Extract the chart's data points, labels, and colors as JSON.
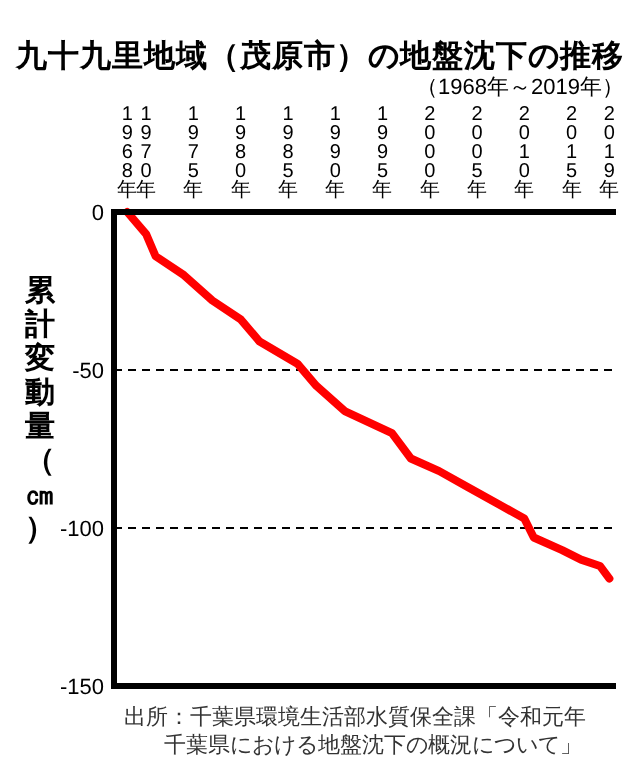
{
  "chart_data": {
    "type": "line",
    "title": "九十九里地域（茂原市）の地盤沈下の推移",
    "subtitle": "（1968年～2019年）",
    "ylabel": "累計変動量（㎝）",
    "x": [
      1968,
      1970,
      1971,
      1974,
      1977,
      1980,
      1982,
      1986,
      1988,
      1991,
      1996,
      1998,
      2001,
      2004,
      2007,
      2010,
      2011,
      2014,
      2016,
      2018,
      2019
    ],
    "series": [
      {
        "color": "#ff0000",
        "values": [
          0,
          -7,
          -14,
          -20,
          -28,
          -34,
          -41,
          -48,
          -55,
          -63,
          -70,
          -78,
          -82,
          -87,
          -92,
          -97,
          -103,
          -107,
          -110,
          -112,
          -116
        ]
      }
    ],
    "xlim": [
      1966.6,
      2019.7
    ],
    "xticks": [
      {
        "value": 1968,
        "label": "1968年"
      },
      {
        "value": 1970,
        "label": "1970年"
      },
      {
        "value": 1975,
        "label": "1975年"
      },
      {
        "value": 1980,
        "label": "1980年"
      },
      {
        "value": 1985,
        "label": "1985年"
      },
      {
        "value": 1990,
        "label": "1990年"
      },
      {
        "value": 1995,
        "label": "1995年"
      },
      {
        "value": 2000,
        "label": "2000年"
      },
      {
        "value": 2005,
        "label": "2005年"
      },
      {
        "value": 2010,
        "label": "2010年"
      },
      {
        "value": 2015,
        "label": "2015年"
      },
      {
        "value": 2019,
        "label": "2019年"
      }
    ],
    "ylim": [
      -150,
      0
    ],
    "yticks": [
      0,
      -50,
      -100,
      -150
    ],
    "grid": "y",
    "marker": "none",
    "line_style": "solid",
    "annotations": [
      "出所：千葉県環境生活部水質保全課「令和元年",
      "千葉県における地盤沈下の概況について」"
    ]
  }
}
